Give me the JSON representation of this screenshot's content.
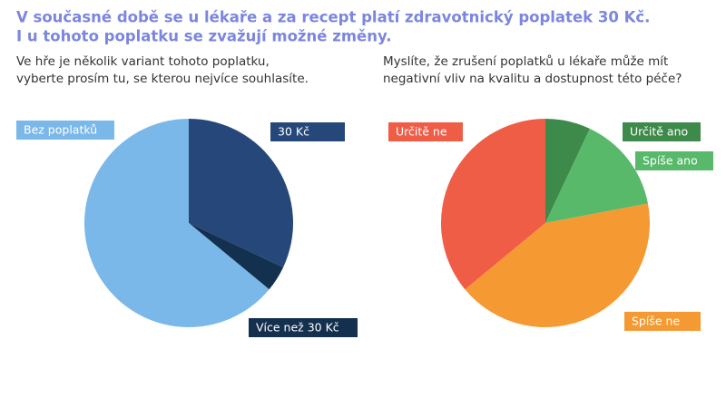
{
  "header": {
    "title_lines": [
      "V současné době se u lékaře a za recept platí zdravotnický poplatek 30 Kč.",
      "I u tohoto poplatku se zvažují možné změny."
    ]
  },
  "chart_data": [
    {
      "type": "pie",
      "title_lines": [
        "Ve hře je několik variant tohoto poplatku,",
        "vyberte prosím tu, se kterou nejvíce souhlasíte."
      ],
      "categories": [
        "30 Kč",
        "Více než 30 Kč",
        "Bez poplatků"
      ],
      "values": [
        32,
        4,
        64
      ],
      "colors": [
        "#26477a",
        "#14304f",
        "#7ab8ea"
      ]
    },
    {
      "type": "pie",
      "title_lines": [
        "Myslíte, že zrušení poplatků u lékaře může mít",
        "negativní vliv na kvalitu a dostupnost této péče?"
      ],
      "categories": [
        "Určitě ano",
        "Spíše ano",
        "Spíše ne",
        "Určitě ne"
      ],
      "values": [
        7,
        15,
        42,
        36
      ],
      "colors": [
        "#3d8a4b",
        "#58b96a",
        "#f59a32",
        "#ef5d47"
      ]
    }
  ]
}
